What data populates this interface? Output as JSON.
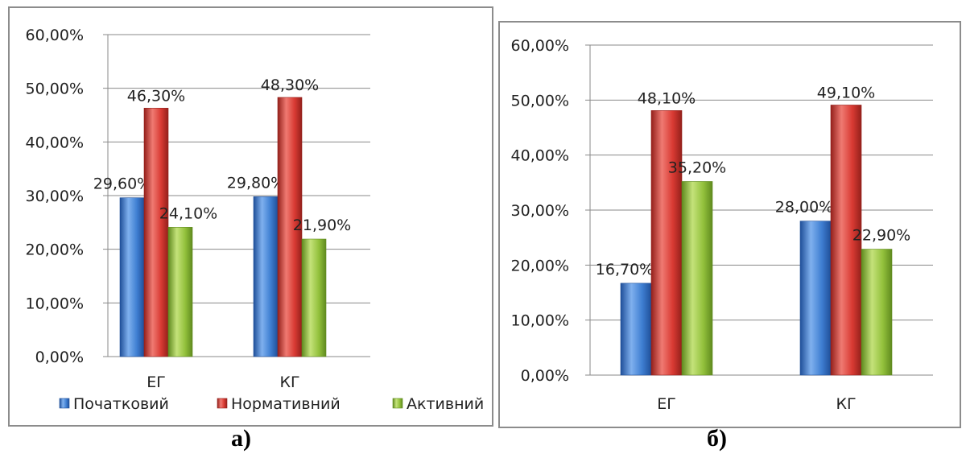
{
  "captions": [
    "а)",
    "б)"
  ],
  "colors": {
    "series": [
      {
        "main": "#3f7fd2",
        "light": "#7fb0ee",
        "dark": "#1f4f99"
      },
      {
        "main": "#d93a33",
        "light": "#ef7a72",
        "dark": "#94201b"
      },
      {
        "main": "#93c13c",
        "light": "#c4e27a",
        "dark": "#5f8a1e"
      }
    ]
  },
  "chart_data": [
    {
      "type": "bar",
      "categories": [
        "ЕГ",
        "КГ"
      ],
      "series": [
        {
          "name": "Початковий",
          "values": [
            29.6,
            29.8
          ]
        },
        {
          "name": "Нормативний",
          "values": [
            46.3,
            48.3
          ]
        },
        {
          "name": "Активний",
          "values": [
            24.1,
            21.9
          ]
        }
      ],
      "data_labels": [
        [
          "29,60%",
          "29,80%"
        ],
        [
          "46,30%",
          "48,30%"
        ],
        [
          "24,10%",
          "21,90%"
        ]
      ],
      "y_ticks": [
        "0,00%",
        "10,00%",
        "20,00%",
        "30,00%",
        "40,00%",
        "50,00%",
        "60,00%"
      ],
      "ylim": [
        0,
        60
      ],
      "grid": true,
      "legend": "bottom"
    },
    {
      "type": "bar",
      "categories": [
        "ЕГ",
        "КГ"
      ],
      "series": [
        {
          "values": [
            16.7,
            28.0
          ]
        },
        {
          "values": [
            48.1,
            49.1
          ]
        },
        {
          "values": [
            35.2,
            22.9
          ]
        }
      ],
      "data_labels": [
        [
          "16,70%",
          "28,00%"
        ],
        [
          "48,10%",
          "49,10%"
        ],
        [
          "35,20%",
          "22,90%"
        ]
      ],
      "y_ticks": [
        "0,00%",
        "10,00%",
        "20,00%",
        "30,00%",
        "40,00%",
        "50,00%",
        "60,00%"
      ],
      "ylim": [
        0,
        60
      ],
      "grid": true,
      "legend": "none"
    }
  ]
}
